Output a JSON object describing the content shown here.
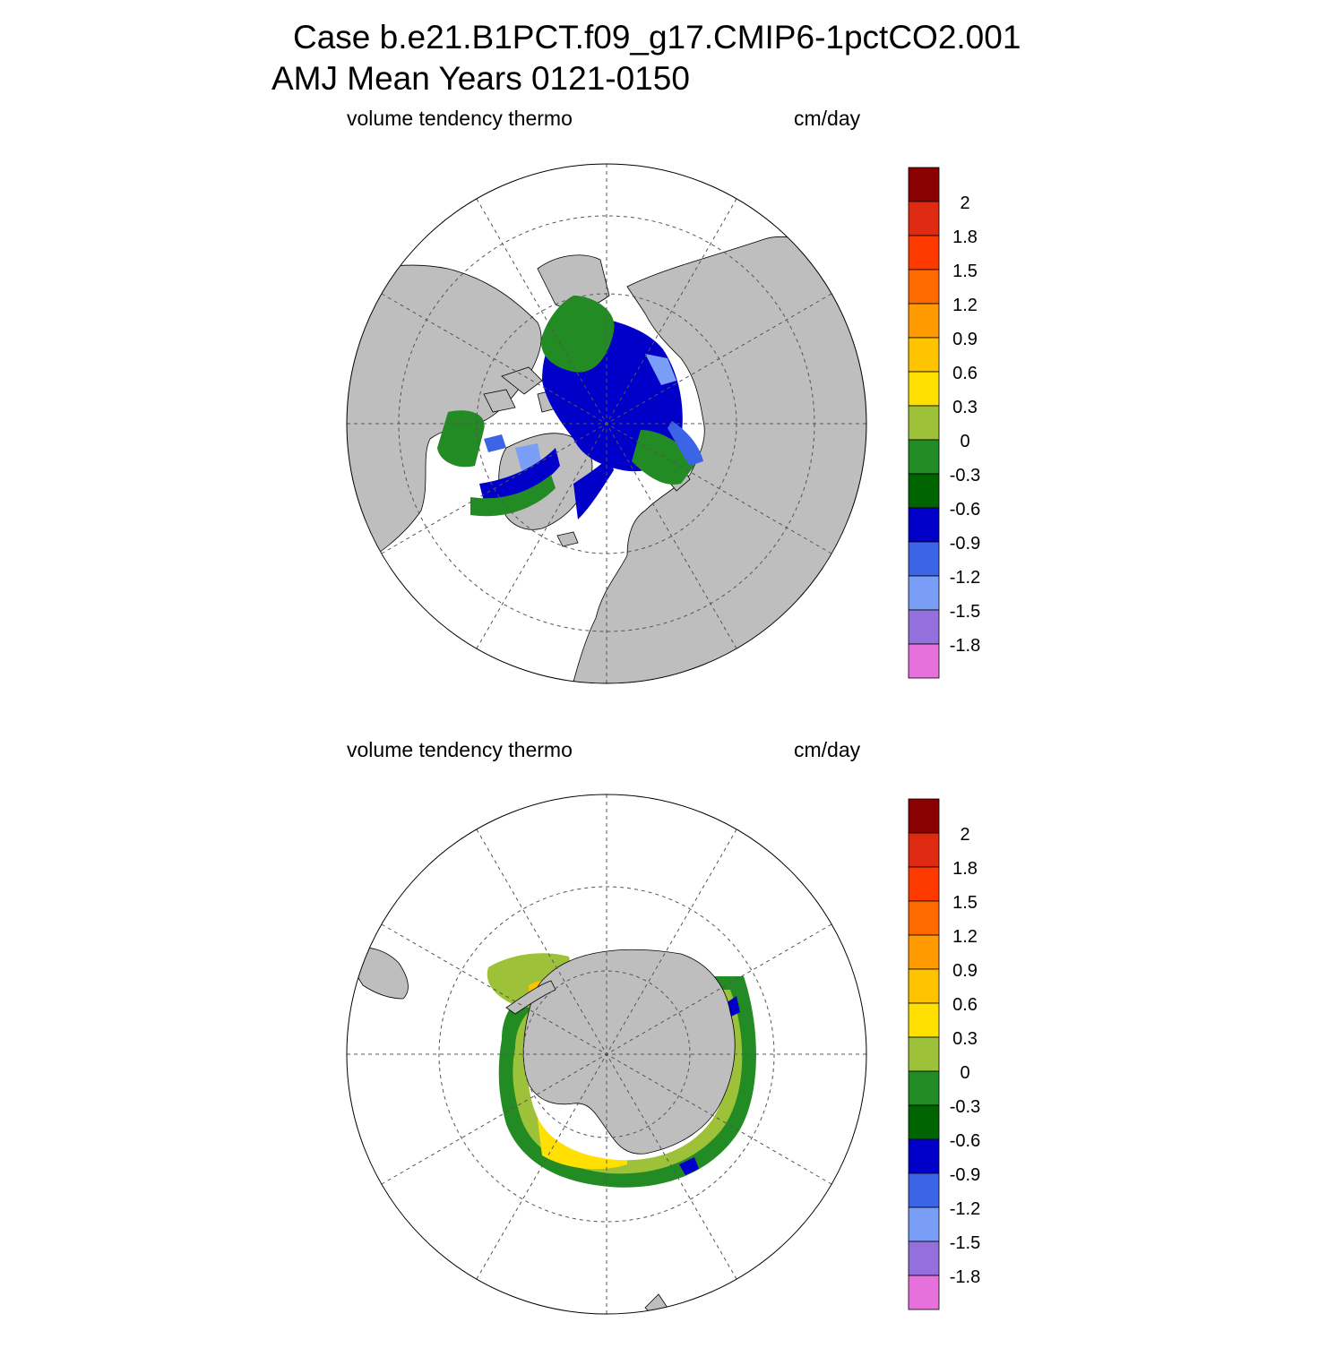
{
  "title_line1": "Case b.e21.B1PCT.f09_g17.CMIP6-1pctCO2.001",
  "title_line2": "AMJ Mean   Years 0121-0150",
  "colorbar": {
    "labels": [
      "2",
      "1.8",
      "1.5",
      "1.2",
      "0.9",
      "0.6",
      "0.3",
      "0",
      "-0.3",
      "-0.6",
      "-0.9",
      "-1.2",
      "-1.5",
      "-1.8"
    ],
    "colors": [
      "#8b0000",
      "#dd2a10",
      "#ff3a00",
      "#ff6a00",
      "#ff9a00",
      "#ffc400",
      "#ffe000",
      "#9dc23a",
      "#238b23",
      "#006400",
      "#0000c8",
      "#3c64e6",
      "#7a9ef5",
      "#9370db",
      "#e670dc"
    ]
  },
  "panels": [
    {
      "id": "north",
      "label_left": "volume tendency thermo",
      "label_right": "cm/day",
      "region": "Arctic",
      "colors_present": [
        "#0000c8",
        "#238b23",
        "#006400",
        "#3c64e6",
        "#7a9ef5"
      ]
    },
    {
      "id": "south",
      "label_left": "volume tendency thermo",
      "label_right": "cm/day",
      "region": "Antarctic",
      "colors_present": [
        "#9dc23a",
        "#ffe000",
        "#ffc400",
        "#ff9a00",
        "#ff6a00",
        "#dd2a10",
        "#8b0000",
        "#238b23",
        "#006400",
        "#0000c8"
      ]
    }
  ],
  "map_colors": {
    "land": "#bebebe",
    "ocean": "#ffffff",
    "grid": "#555555"
  }
}
